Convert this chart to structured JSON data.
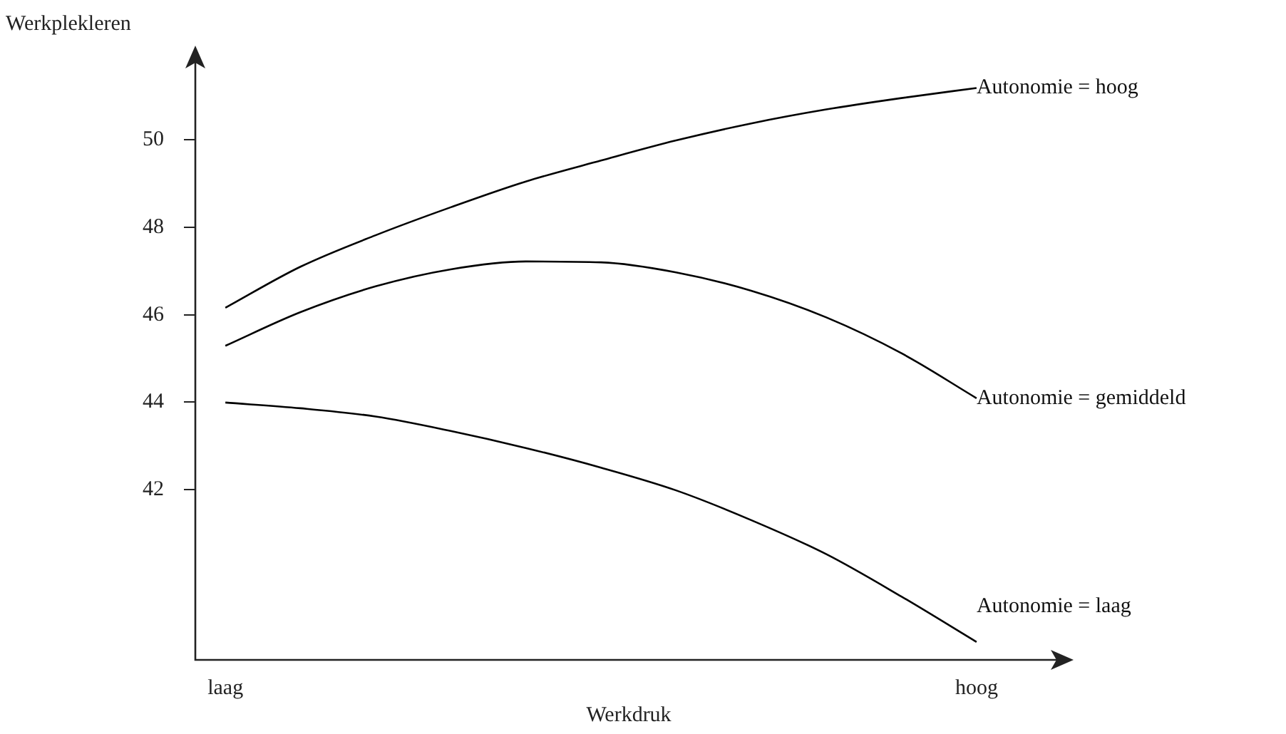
{
  "chart_data": {
    "type": "line",
    "xlabel": "Werkdruk",
    "ylabel": "Werkplekleren",
    "categories": [
      "laag",
      null,
      null,
      null,
      null,
      null,
      null,
      null,
      null,
      null,
      "hoog"
    ],
    "ylim": [
      38.1,
      51.9
    ],
    "yticks": [
      42,
      44,
      46,
      48,
      50
    ],
    "marker": "none",
    "line_style": "solid",
    "series": [
      {
        "name": "Autonomie = hoog",
        "color": "#000000",
        "values": [
          46.16,
          47.1,
          47.82,
          48.46,
          49.05,
          49.53,
          49.99,
          50.38,
          50.7,
          50.96,
          51.19
        ]
      },
      {
        "name": "Autonomie = gemiddeld",
        "color": "#000000",
        "values": [
          45.29,
          46.06,
          46.65,
          47.04,
          47.22,
          47.2,
          46.97,
          46.55,
          45.94,
          45.12,
          44.09
        ]
      },
      {
        "name": "Autonomie = laag",
        "color": "#000000",
        "values": [
          43.99,
          43.86,
          43.67,
          43.34,
          42.95,
          42.5,
          41.98,
          41.3,
          40.52,
          39.55,
          38.51
        ]
      }
    ]
  }
}
